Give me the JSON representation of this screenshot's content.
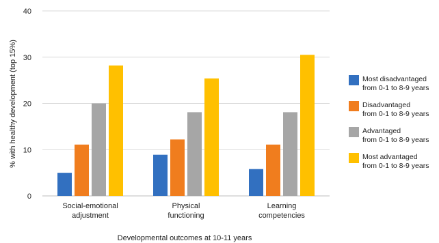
{
  "chart_data": {
    "type": "bar",
    "title": "",
    "xlabel": "Developmental outcomes at 10-11 years",
    "ylabel": "% with healthy development (top 15%)",
    "ylim": [
      0,
      40
    ],
    "yticks": [
      "0",
      "10",
      "20",
      "30",
      "40"
    ],
    "grid": true,
    "legend_position": "right",
    "categories": [
      [
        "Social-emotional",
        "adjustment"
      ],
      [
        "Physical",
        "functioning"
      ],
      [
        "Learning",
        "competencies"
      ]
    ],
    "series": [
      {
        "name": [
          "Most disadvantaged",
          "from 0-1 to 8-9 years"
        ],
        "color": "#3270c0",
        "values": [
          5.0,
          8.9,
          5.8
        ]
      },
      {
        "name": [
          "Disadvantaged",
          "from 0-1 to 8-9 years"
        ],
        "color": "#f07d1e",
        "values": [
          11.1,
          12.2,
          11.1
        ]
      },
      {
        "name": [
          "Advantaged",
          "from 0-1 to 8-9 years"
        ],
        "color": "#a6a6a6",
        "values": [
          20.0,
          18.1,
          18.1
        ]
      },
      {
        "name": [
          "Most advantaged",
          "from 0-1 to 8-9 years"
        ],
        "color": "#ffc000",
        "values": [
          28.2,
          25.4,
          30.5
        ]
      }
    ]
  }
}
